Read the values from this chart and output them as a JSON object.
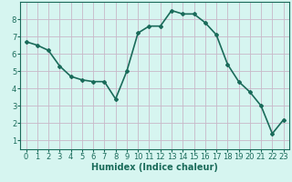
{
  "x": [
    0,
    1,
    2,
    3,
    4,
    5,
    6,
    7,
    8,
    9,
    10,
    11,
    12,
    13,
    14,
    15,
    16,
    17,
    18,
    19,
    20,
    21,
    22,
    23
  ],
  "y": [
    6.7,
    6.5,
    6.2,
    5.3,
    4.7,
    4.5,
    4.4,
    4.4,
    3.4,
    5.0,
    7.2,
    7.6,
    7.6,
    8.5,
    8.3,
    8.3,
    7.8,
    7.1,
    5.4,
    4.4,
    3.8,
    3.0,
    1.4,
    2.2
  ],
  "line_color": "#1a6b5a",
  "marker": "D",
  "marker_size": 2,
  "bg_color": "#d6f5f0",
  "grid_color": "#c8b8c8",
  "xlabel": "Humidex (Indice chaleur)",
  "xlim": [
    -0.5,
    23.5
  ],
  "ylim": [
    0.5,
    9.0
  ],
  "yticks": [
    1,
    2,
    3,
    4,
    5,
    6,
    7,
    8
  ],
  "xticks": [
    0,
    1,
    2,
    3,
    4,
    5,
    6,
    7,
    8,
    9,
    10,
    11,
    12,
    13,
    14,
    15,
    16,
    17,
    18,
    19,
    20,
    21,
    22,
    23
  ],
  "xlabel_fontsize": 7,
  "tick_fontsize": 6,
  "line_width": 1.2
}
